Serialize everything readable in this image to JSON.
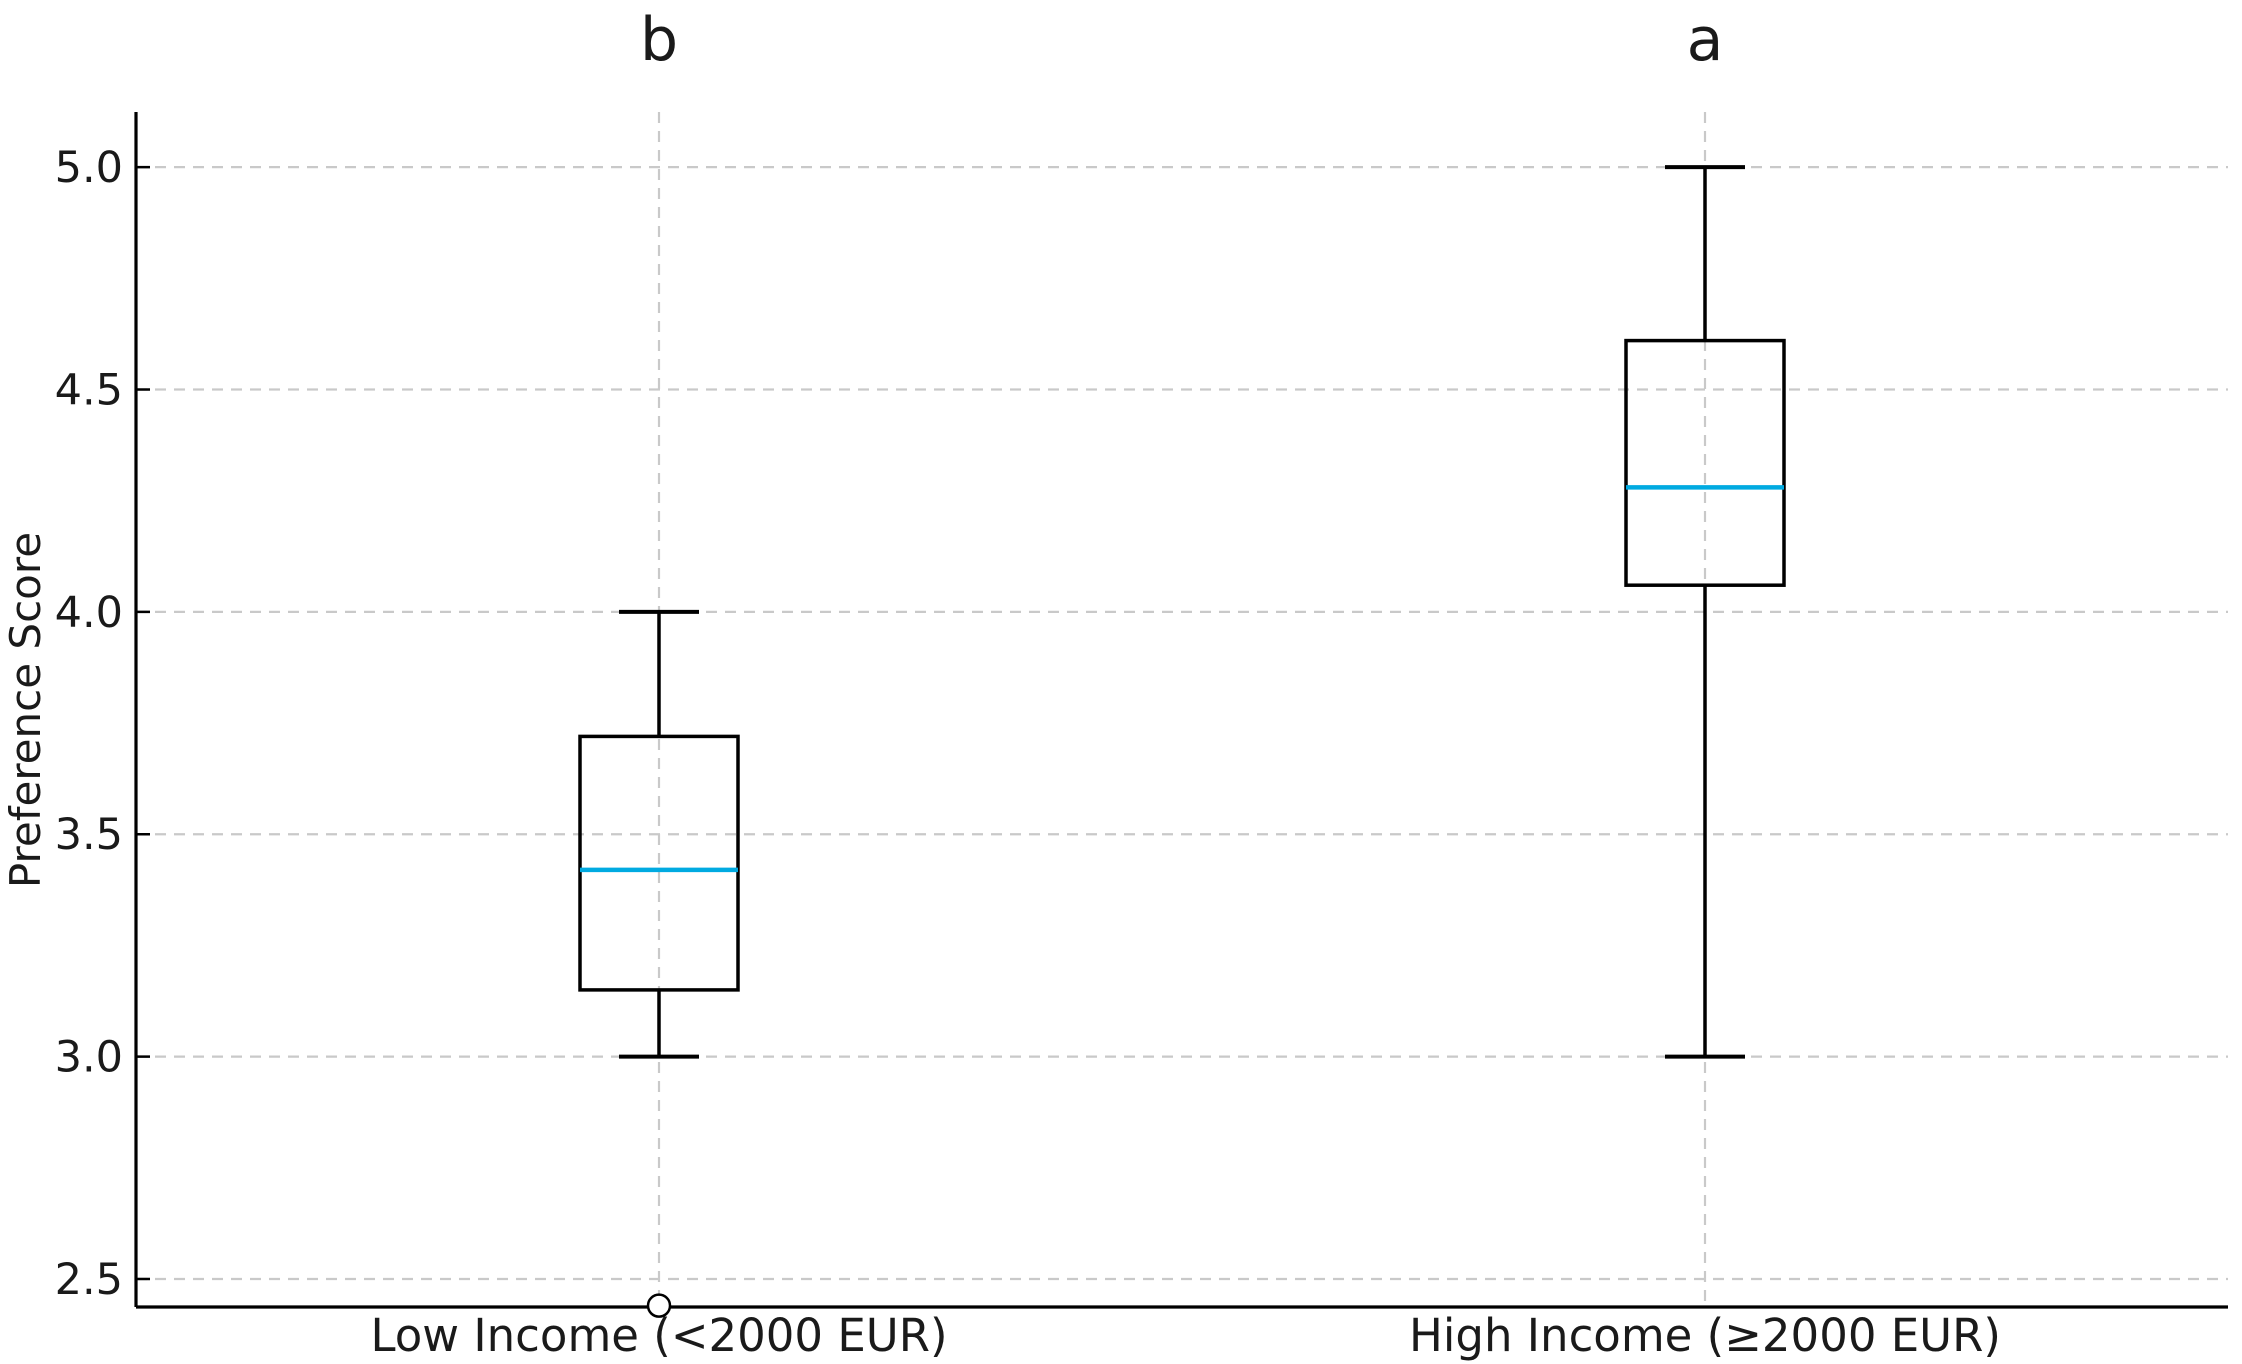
{
  "chart_data": {
    "type": "box",
    "title": "",
    "ylabel": "Preference Score",
    "xlabel": "",
    "categories": [
      "Low Income (<2000 EUR)",
      "High Income (≥2000 EUR)"
    ],
    "series": [
      {
        "category": "Low Income (<2000 EUR)",
        "significance_letter": "b",
        "whisker_low": 3.0,
        "q1": 3.15,
        "median": 3.42,
        "q3": 3.72,
        "whisker_high": 4.0,
        "outliers": [
          2.44
        ]
      },
      {
        "category": "High Income (≥2000 EUR)",
        "significance_letter": "a",
        "whisker_low": 3.0,
        "q1": 4.06,
        "median": 4.28,
        "q3": 4.61,
        "whisker_high": 5.0,
        "outliers": []
      }
    ],
    "ytick_labels": [
      "5.0",
      "4.5",
      "4.0",
      "3.5",
      "3.0",
      "2.5"
    ],
    "ytick_values": [
      5.0,
      4.5,
      4.0,
      3.5,
      3.0,
      2.5
    ],
    "ylim": [
      2.437,
      5.124
    ],
    "grid": "dashed, both axes, light gray",
    "legend": "none",
    "colors": {
      "median_line": "#00AAE1",
      "box_stroke": "#000000",
      "whisker": "#000000",
      "grid": "#C9C9C9",
      "axis": "#000000",
      "background": "#FFFFFF",
      "outlier_fill": "#FFFFFF"
    }
  }
}
